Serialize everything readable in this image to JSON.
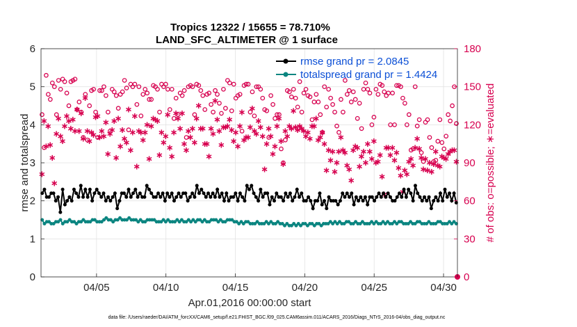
{
  "chart_data": {
    "type": "line",
    "title_line1": "Tropics 12322 / 15655 = 78.710%",
    "title_line2": "LAND_SFC_ALTIMETER @ 1 surface",
    "ylabel_left": "rmse and totalspread",
    "ylabel_right": "# of obs: o=possible; ∗=evaluated",
    "xlabel": "Apr.01,2016 00:00:00 start",
    "footer": "data file: /Users/raeder/DAI/ATM_forcXX/CAM6_setup/f.e21.FHIST_BGC.f09_025.CAM6assim.011/ACARS_2016/Diags_NTrS_2016-04/obs_diag_output.nc",
    "x_range_days": [
      1,
      31
    ],
    "ylim_left": [
      0,
      6
    ],
    "ylim_right": [
      0,
      180
    ],
    "xticks": [
      {
        "day": 5,
        "label": "04/05"
      },
      {
        "day": 10,
        "label": "04/10"
      },
      {
        "day": 15,
        "label": "04/15"
      },
      {
        "day": 20,
        "label": "04/20"
      },
      {
        "day": 25,
        "label": "04/25"
      },
      {
        "day": 30,
        "label": "04/30"
      }
    ],
    "yticks_left": [
      "0",
      "1",
      "2",
      "3",
      "4",
      "5",
      "6"
    ],
    "yticks_right": [
      "0",
      "30",
      "60",
      "90",
      "120",
      "150",
      "180"
    ],
    "legend": [
      {
        "name": "rmse grand pr = 2.0845",
        "color": "#000000"
      },
      {
        "name": "totalspread grand pr = 1.4424",
        "color": "#0b8580"
      }
    ],
    "series_rmse": [
      2.2,
      2.3,
      2.1,
      2.1,
      2.2,
      2.2,
      2.0,
      2.1,
      1.7,
      2.3,
      1.9,
      2.0,
      2.1,
      2.0,
      2.3,
      2.2,
      2.1,
      2.4,
      2.1,
      2.3,
      2.1,
      2.3,
      2.0,
      2.2,
      2.3,
      2.2,
      2.1,
      2.2,
      2.0,
      2.1,
      2.0,
      2.1,
      2.2,
      1.8,
      2.0,
      2.2,
      2.2,
      2.1,
      2.3,
      2.1,
      2.2,
      2.3,
      2.1,
      2.2,
      2.1,
      2.1,
      2.4,
      2.3,
      2.2,
      2.1,
      2.1,
      2.2,
      2.1,
      2.2,
      2.0,
      2.2,
      2.1,
      2.2,
      2.0,
      2.1,
      2.2,
      2.1,
      2.2,
      2.2,
      2.0,
      2.1,
      2.2,
      2.1,
      2.4,
      2.2,
      2.3,
      2.2,
      2.1,
      2.2,
      2.1,
      2.2,
      2.1,
      2.3,
      2.1,
      2.2,
      2.0,
      2.2,
      2.0,
      2.1,
      2.1,
      2.2,
      2.0,
      2.2,
      2.1,
      2.0,
      2.4,
      2.3,
      2.4,
      2.2,
      2.1,
      2.0,
      2.3,
      2.1,
      2.2,
      2.2,
      1.9,
      2.1,
      2.0,
      2.2,
      2.1,
      2.1,
      2.0,
      2.2,
      2.1,
      2.2,
      2.0,
      2.1,
      2.3,
      2.1,
      2.2,
      2.0,
      2.0,
      2.1,
      2.0,
      1.8,
      2.0,
      2.0,
      2.2,
      1.9,
      2.0,
      1.8,
      2.1,
      2.0,
      2.0,
      2.0,
      1.9,
      2.0,
      2.2,
      2.1,
      2.2,
      2.1,
      2.2,
      1.9,
      2.1,
      2.0,
      2.1,
      2.0,
      2.1,
      1.9,
      2.1,
      2.1,
      2.0,
      2.1,
      2.2,
      2.1,
      2.2,
      2.1,
      2.2,
      2.1,
      2.0,
      2.0,
      2.1,
      2.2,
      2.1,
      2.3,
      2.1,
      2.3,
      2.2,
      2.0,
      2.4,
      2.2,
      2.1,
      2.0,
      2.1,
      2.0,
      2.1,
      1.8,
      2.0,
      2.1,
      2.0,
      2.2,
      2.0,
      2.3,
      2.1,
      2.2,
      2.0,
      2.2,
      1.95
    ],
    "series_totalspread": [
      1.5,
      1.4,
      1.45,
      1.45,
      1.4,
      1.4,
      1.45,
      1.45,
      1.5,
      1.4,
      1.45,
      1.45,
      1.5,
      1.45,
      1.45,
      1.4,
      1.45,
      1.45,
      1.5,
      1.45,
      1.45,
      1.45,
      1.5,
      1.5,
      1.45,
      1.45,
      1.45,
      1.5,
      1.55,
      1.5,
      1.5,
      1.45,
      1.5,
      1.5,
      1.55,
      1.5,
      1.5,
      1.5,
      1.55,
      1.5,
      1.5,
      1.5,
      1.45,
      1.5,
      1.45,
      1.45,
      1.5,
      1.5,
      1.5,
      1.5,
      1.45,
      1.45,
      1.45,
      1.5,
      1.45,
      1.5,
      1.45,
      1.45,
      1.45,
      1.5,
      1.45,
      1.5,
      1.45,
      1.45,
      1.5,
      1.45,
      1.5,
      1.45,
      1.5,
      1.5,
      1.45,
      1.5,
      1.45,
      1.45,
      1.5,
      1.5,
      1.5,
      1.45,
      1.5,
      1.45,
      1.45,
      1.5,
      1.5,
      1.5,
      1.45,
      1.45,
      1.4,
      1.45,
      1.4,
      1.45,
      1.45,
      1.4,
      1.4,
      1.4,
      1.45,
      1.4,
      1.4,
      1.4,
      1.45,
      1.4,
      1.45,
      1.4,
      1.4,
      1.45,
      1.4,
      1.4,
      1.35,
      1.4,
      1.35,
      1.35,
      1.4,
      1.35,
      1.4,
      1.35,
      1.4,
      1.4,
      1.35,
      1.4,
      1.4,
      1.35,
      1.4,
      1.4,
      1.35,
      1.4,
      1.4,
      1.4,
      1.45,
      1.4,
      1.45,
      1.4,
      1.45,
      1.4,
      1.4,
      1.45,
      1.45,
      1.4,
      1.4,
      1.45,
      1.4,
      1.4,
      1.45,
      1.4,
      1.4,
      1.4,
      1.45,
      1.4,
      1.45,
      1.4,
      1.4,
      1.45,
      1.4,
      1.45,
      1.4,
      1.4,
      1.45,
      1.4,
      1.45,
      1.45,
      1.4,
      1.4,
      1.4,
      1.45,
      1.4,
      1.4,
      1.45,
      1.45,
      1.4,
      1.4,
      1.4,
      1.45,
      1.4,
      1.4,
      1.4,
      1.45,
      1.45,
      1.4,
      1.4,
      1.4,
      1.45,
      1.4,
      1.45,
      1.4
    ],
    "obs_possible": [
      128,
      102,
      159,
      144,
      140,
      153,
      150,
      128,
      155,
      148,
      156,
      154,
      145,
      135,
      154,
      155,
      156,
      132,
      138,
      130,
      110,
      144,
      108,
      135,
      147,
      148,
      130,
      110,
      147,
      147,
      150,
      143,
      130,
      115,
      148,
      146,
      143,
      133,
      144,
      146,
      155,
      149,
      116,
      152,
      150,
      152,
      136,
      150,
      127,
      144,
      148,
      145,
      140,
      140,
      151,
      150,
      148,
      130,
      152,
      150,
      152,
      148,
      132,
      148,
      125,
      141,
      128,
      145,
      143,
      147,
      110,
      150,
      151,
      150,
      128,
      152,
      151,
      147,
      143,
      132,
      144,
      145,
      136,
      130,
      147,
      144,
      137,
      129,
      148,
      133,
      155,
      153,
      131,
      152,
      141,
      143,
      144,
      115,
      151,
      152,
      152,
      130,
      146,
      127,
      150,
      150,
      148,
      141,
      132,
      131,
      110,
      143,
      136,
      125,
      128,
      128,
      101,
      90,
      108,
      147,
      146,
      142,
      148,
      141,
      134,
      154,
      130,
      145,
      148,
      143,
      142,
      124,
      138,
      144,
      138,
      128,
      114,
      150,
      134,
      148,
      141,
      136,
      130,
      119,
      114,
      140,
      130,
      155,
      144,
      147,
      138,
      146,
      140,
      125,
      137,
      117,
      148,
      153,
      148,
      145,
      120,
      126,
      148,
      144,
      152,
      151,
      146,
      143,
      145,
      120,
      145,
      120,
      151,
      151,
      150,
      141,
      137,
      120,
      128,
      100,
      101,
      150,
      119,
      124,
      98,
      91,
      122,
      124,
      110,
      102,
      91,
      92,
      107,
      124,
      106,
      101,
      111,
      128,
      123,
      135,
      150,
      121
    ],
    "obs_evaluated": [
      82,
      124,
      104,
      120,
      105,
      95,
      75,
      114,
      126,
      112,
      108,
      120,
      128,
      124,
      118,
      125,
      116,
      133,
      116,
      130,
      110,
      142,
      116,
      108,
      115,
      113,
      127,
      128,
      111,
      116,
      112,
      123,
      98,
      114,
      117,
      124,
      95,
      126,
      104,
      117,
      110,
      107,
      133,
      101,
      115,
      128,
      88,
      116,
      115,
      109,
      115,
      121,
      94,
      120,
      126,
      125,
      124,
      97,
      115,
      107,
      112,
      129,
      103,
      96,
      115,
      130,
      126,
      118,
      130,
      106,
      101,
      116,
      111,
      118,
      107,
      126,
      136,
      118,
      118,
      106,
      106,
      96,
      118,
      114,
      140,
      125,
      116,
      105,
      119,
      119,
      120,
      125,
      117,
      108,
      115,
      104,
      120,
      131,
      109,
      111,
      111,
      119,
      134,
      116,
      114,
      124,
      119,
      112,
      86,
      106,
      118,
      112,
      98,
      104,
      120,
      126,
      108,
      90,
      116,
      112,
      120,
      118,
      132,
      119,
      117,
      120,
      118,
      116,
      112,
      115,
      110,
      120,
      120,
      126,
      109,
      111,
      115,
      106,
      85,
      101,
      93,
      100,
      84,
      91,
      100,
      111,
      101,
      99,
      89,
      86,
      77,
      101,
      104,
      103,
      88,
      96,
      100,
      91,
      106,
      100,
      94,
      108,
      91,
      92,
      97,
      80,
      66,
      103,
      103,
      97,
      103,
      93,
      99,
      87,
      81,
      68,
      85,
      82,
      92,
      94,
      89,
      103,
      110,
      102,
      95,
      86,
      94,
      85,
      91,
      84,
      90,
      100,
      89,
      88,
      96,
      95,
      94,
      98,
      100,
      101,
      101,
      92
    ],
    "obs_zero_day": 31
  }
}
